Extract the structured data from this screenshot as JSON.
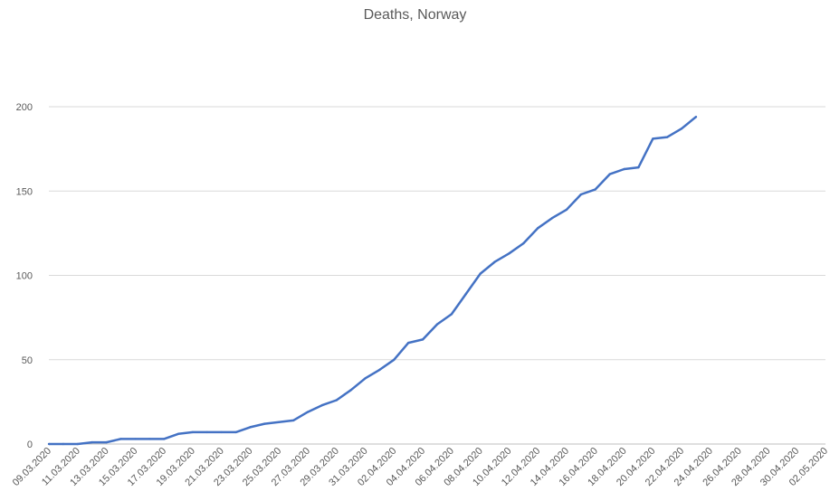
{
  "chart_data": {
    "type": "line",
    "title": "Deaths, Norway",
    "xlabel": "",
    "ylabel": "",
    "ylim": [
      0,
      200
    ],
    "yticks": [
      0,
      50,
      100,
      150,
      200
    ],
    "grid": true,
    "legend": "none",
    "x_tick_labels": [
      "09.03.2020",
      "11.03.2020",
      "13.03.2020",
      "15.03.2020",
      "17.03.2020",
      "19.03.2020",
      "21.03.2020",
      "23.03.2020",
      "25.03.2020",
      "27.03.2020",
      "29.03.2020",
      "31.03.2020",
      "02.04.2020",
      "04.04.2020",
      "06.04.2020",
      "08.04.2020",
      "10.04.2020",
      "12.04.2020",
      "14.04.2020",
      "16.04.2020",
      "18.04.2020",
      "20.04.2020",
      "22.04.2020",
      "24.04.2020",
      "26.04.2020",
      "28.04.2020",
      "30.04.2020",
      "02.05.2020"
    ],
    "x_range": [
      "09.03.2020",
      "02.05.2020"
    ],
    "series": [
      {
        "color": "#4472c4",
        "x": [
          "09.03.2020",
          "10.03.2020",
          "11.03.2020",
          "12.03.2020",
          "13.03.2020",
          "14.03.2020",
          "15.03.2020",
          "16.03.2020",
          "17.03.2020",
          "18.03.2020",
          "19.03.2020",
          "20.03.2020",
          "21.03.2020",
          "22.03.2020",
          "23.03.2020",
          "24.03.2020",
          "25.03.2020",
          "26.03.2020",
          "27.03.2020",
          "28.03.2020",
          "29.03.2020",
          "30.03.2020",
          "31.03.2020",
          "01.04.2020",
          "02.04.2020",
          "03.04.2020",
          "04.04.2020",
          "05.04.2020",
          "06.04.2020",
          "07.04.2020",
          "08.04.2020",
          "09.04.2020",
          "10.04.2020",
          "11.04.2020",
          "12.04.2020",
          "13.04.2020",
          "14.04.2020",
          "15.04.2020",
          "16.04.2020",
          "17.04.2020",
          "18.04.2020",
          "19.04.2020",
          "20.04.2020",
          "21.04.2020",
          "22.04.2020",
          "23.04.2020"
        ],
        "values": [
          0,
          0,
          0,
          1,
          1,
          3,
          3,
          3,
          3,
          6,
          7,
          7,
          7,
          7,
          10,
          12,
          13,
          14,
          19,
          23,
          26,
          32,
          39,
          44,
          50,
          60,
          62,
          71,
          77,
          89,
          101,
          108,
          113,
          119,
          128,
          134,
          139,
          148,
          151,
          160,
          163,
          164,
          181,
          182,
          187,
          194
        ]
      }
    ]
  }
}
